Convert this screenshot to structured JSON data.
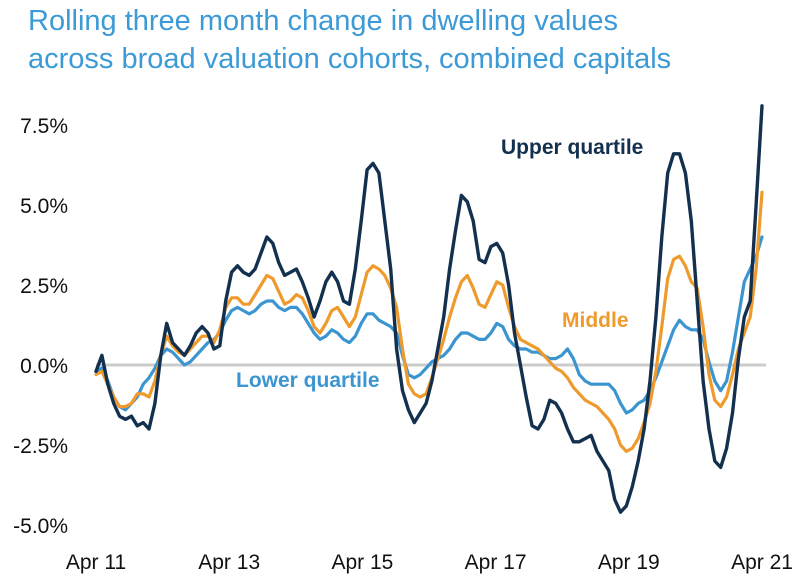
{
  "title_lines": [
    "Rolling three month change in dwelling values",
    "across broad valuation cohorts, combined capitals"
  ],
  "colors": {
    "upper": "#13304f",
    "middle": "#ef9a2c",
    "lower": "#3b95d0",
    "zero_line": "#cccccc",
    "title": "#3c9ad6"
  },
  "chart_data": {
    "type": "line",
    "title": "Rolling three month change in dwelling values across broad valuation cohorts, combined capitals",
    "xlabel": "",
    "ylabel": "",
    "x_ticks": [
      "Apr 11",
      "Apr 13",
      "Apr 15",
      "Apr 17",
      "Apr 19",
      "Apr 21"
    ],
    "y_ticks": [
      "7.5%",
      "5.0%",
      "2.5%",
      "0.0%",
      "-2.5%",
      "-5.0%"
    ],
    "ylim": [
      -5.0,
      7.5
    ],
    "x_start": "2011-04",
    "x_end": "2021-04",
    "frequency": "monthly",
    "grid": false,
    "legend": "inline labels",
    "series": [
      {
        "name": "Upper quartile",
        "values": [
          -0.2,
          0.3,
          -0.6,
          -1.2,
          -1.6,
          -1.7,
          -1.6,
          -1.9,
          -1.8,
          -2.0,
          -1.2,
          0.3,
          1.3,
          0.7,
          0.5,
          0.3,
          0.6,
          1.0,
          1.2,
          1.0,
          0.5,
          0.6,
          2.0,
          2.9,
          3.1,
          2.9,
          2.8,
          3.0,
          3.5,
          4.0,
          3.8,
          3.2,
          2.8,
          2.9,
          3.0,
          2.6,
          2.1,
          1.5,
          2.0,
          2.6,
          2.9,
          2.6,
          2.0,
          1.9,
          3.0,
          4.5,
          6.1,
          6.3,
          6.0,
          4.5,
          3.0,
          0.5,
          -0.8,
          -1.4,
          -1.8,
          -1.5,
          -1.2,
          -0.5,
          0.5,
          1.5,
          3.0,
          4.2,
          5.3,
          5.1,
          4.5,
          3.3,
          3.2,
          3.7,
          3.8,
          3.5,
          2.5,
          1.0,
          0.0,
          -1.0,
          -1.9,
          -2.0,
          -1.7,
          -1.1,
          -1.2,
          -1.5,
          -2.0,
          -2.4,
          -2.4,
          -2.3,
          -2.2,
          -2.7,
          -3.0,
          -3.3,
          -4.2,
          -4.6,
          -4.4,
          -3.8,
          -3.0,
          -2.0,
          -0.5,
          1.5,
          4.0,
          6.0,
          6.6,
          6.6,
          6.0,
          4.5,
          2.0,
          -0.5,
          -2.0,
          -3.0,
          -3.2,
          -2.6,
          -1.5,
          0.2,
          1.5,
          2.0,
          5.0,
          8.1
        ]
      },
      {
        "name": "Middle",
        "values": [
          -0.3,
          -0.2,
          -0.6,
          -1.0,
          -1.3,
          -1.3,
          -1.2,
          -0.9,
          -0.9,
          -1.0,
          -0.5,
          0.3,
          0.9,
          0.6,
          0.4,
          0.3,
          0.5,
          0.7,
          0.9,
          0.9,
          0.7,
          1.1,
          1.8,
          2.1,
          2.1,
          1.9,
          1.9,
          2.2,
          2.5,
          2.8,
          2.7,
          2.3,
          1.9,
          2.0,
          2.2,
          2.1,
          1.7,
          1.2,
          1.0,
          1.3,
          1.7,
          1.8,
          1.5,
          1.2,
          1.5,
          2.2,
          2.9,
          3.1,
          3.0,
          2.8,
          2.4,
          1.8,
          0.5,
          -0.6,
          -0.9,
          -1.0,
          -0.9,
          -0.4,
          0.2,
          0.8,
          1.5,
          2.1,
          2.6,
          2.8,
          2.4,
          1.9,
          1.8,
          2.2,
          2.6,
          2.5,
          1.8,
          1.2,
          0.8,
          0.7,
          0.6,
          0.5,
          0.3,
          0.1,
          -0.1,
          -0.2,
          -0.4,
          -0.7,
          -0.9,
          -1.1,
          -1.2,
          -1.3,
          -1.5,
          -1.7,
          -2.0,
          -2.5,
          -2.7,
          -2.6,
          -2.3,
          -1.8,
          -1.2,
          -0.2,
          1.2,
          2.7,
          3.3,
          3.4,
          3.1,
          2.6,
          2.4,
          1.2,
          -0.3,
          -1.1,
          -1.3,
          -1.0,
          -0.3,
          0.5,
          1.0,
          1.5,
          3.0,
          5.4
        ]
      },
      {
        "name": "Lower quartile",
        "values": [
          -0.2,
          -0.1,
          -0.5,
          -1.0,
          -1.3,
          -1.4,
          -1.2,
          -1.0,
          -0.6,
          -0.4,
          -0.1,
          0.3,
          0.5,
          0.4,
          0.2,
          0.0,
          0.1,
          0.3,
          0.5,
          0.7,
          0.8,
          1.0,
          1.4,
          1.7,
          1.8,
          1.7,
          1.6,
          1.7,
          1.9,
          2.0,
          2.0,
          1.8,
          1.7,
          1.8,
          1.8,
          1.6,
          1.3,
          1.0,
          0.8,
          0.9,
          1.1,
          1.0,
          0.8,
          0.7,
          0.9,
          1.3,
          1.6,
          1.6,
          1.4,
          1.3,
          1.2,
          1.0,
          0.3,
          -0.3,
          -0.4,
          -0.3,
          -0.1,
          0.1,
          0.2,
          0.3,
          0.5,
          0.8,
          1.0,
          1.0,
          0.9,
          0.8,
          0.8,
          1.0,
          1.3,
          1.2,
          0.8,
          0.6,
          0.5,
          0.5,
          0.4,
          0.4,
          0.3,
          0.2,
          0.2,
          0.3,
          0.5,
          0.2,
          -0.3,
          -0.5,
          -0.6,
          -0.6,
          -0.6,
          -0.6,
          -0.8,
          -1.2,
          -1.5,
          -1.4,
          -1.2,
          -1.1,
          -0.8,
          -0.4,
          0.1,
          0.6,
          1.1,
          1.4,
          1.2,
          1.1,
          1.1,
          0.8,
          0.1,
          -0.5,
          -0.8,
          -0.5,
          0.4,
          1.5,
          2.6,
          3.0,
          3.4,
          4.0
        ]
      }
    ],
    "annotations": [
      "Upper quartile",
      "Middle",
      "Lower quartile"
    ]
  }
}
